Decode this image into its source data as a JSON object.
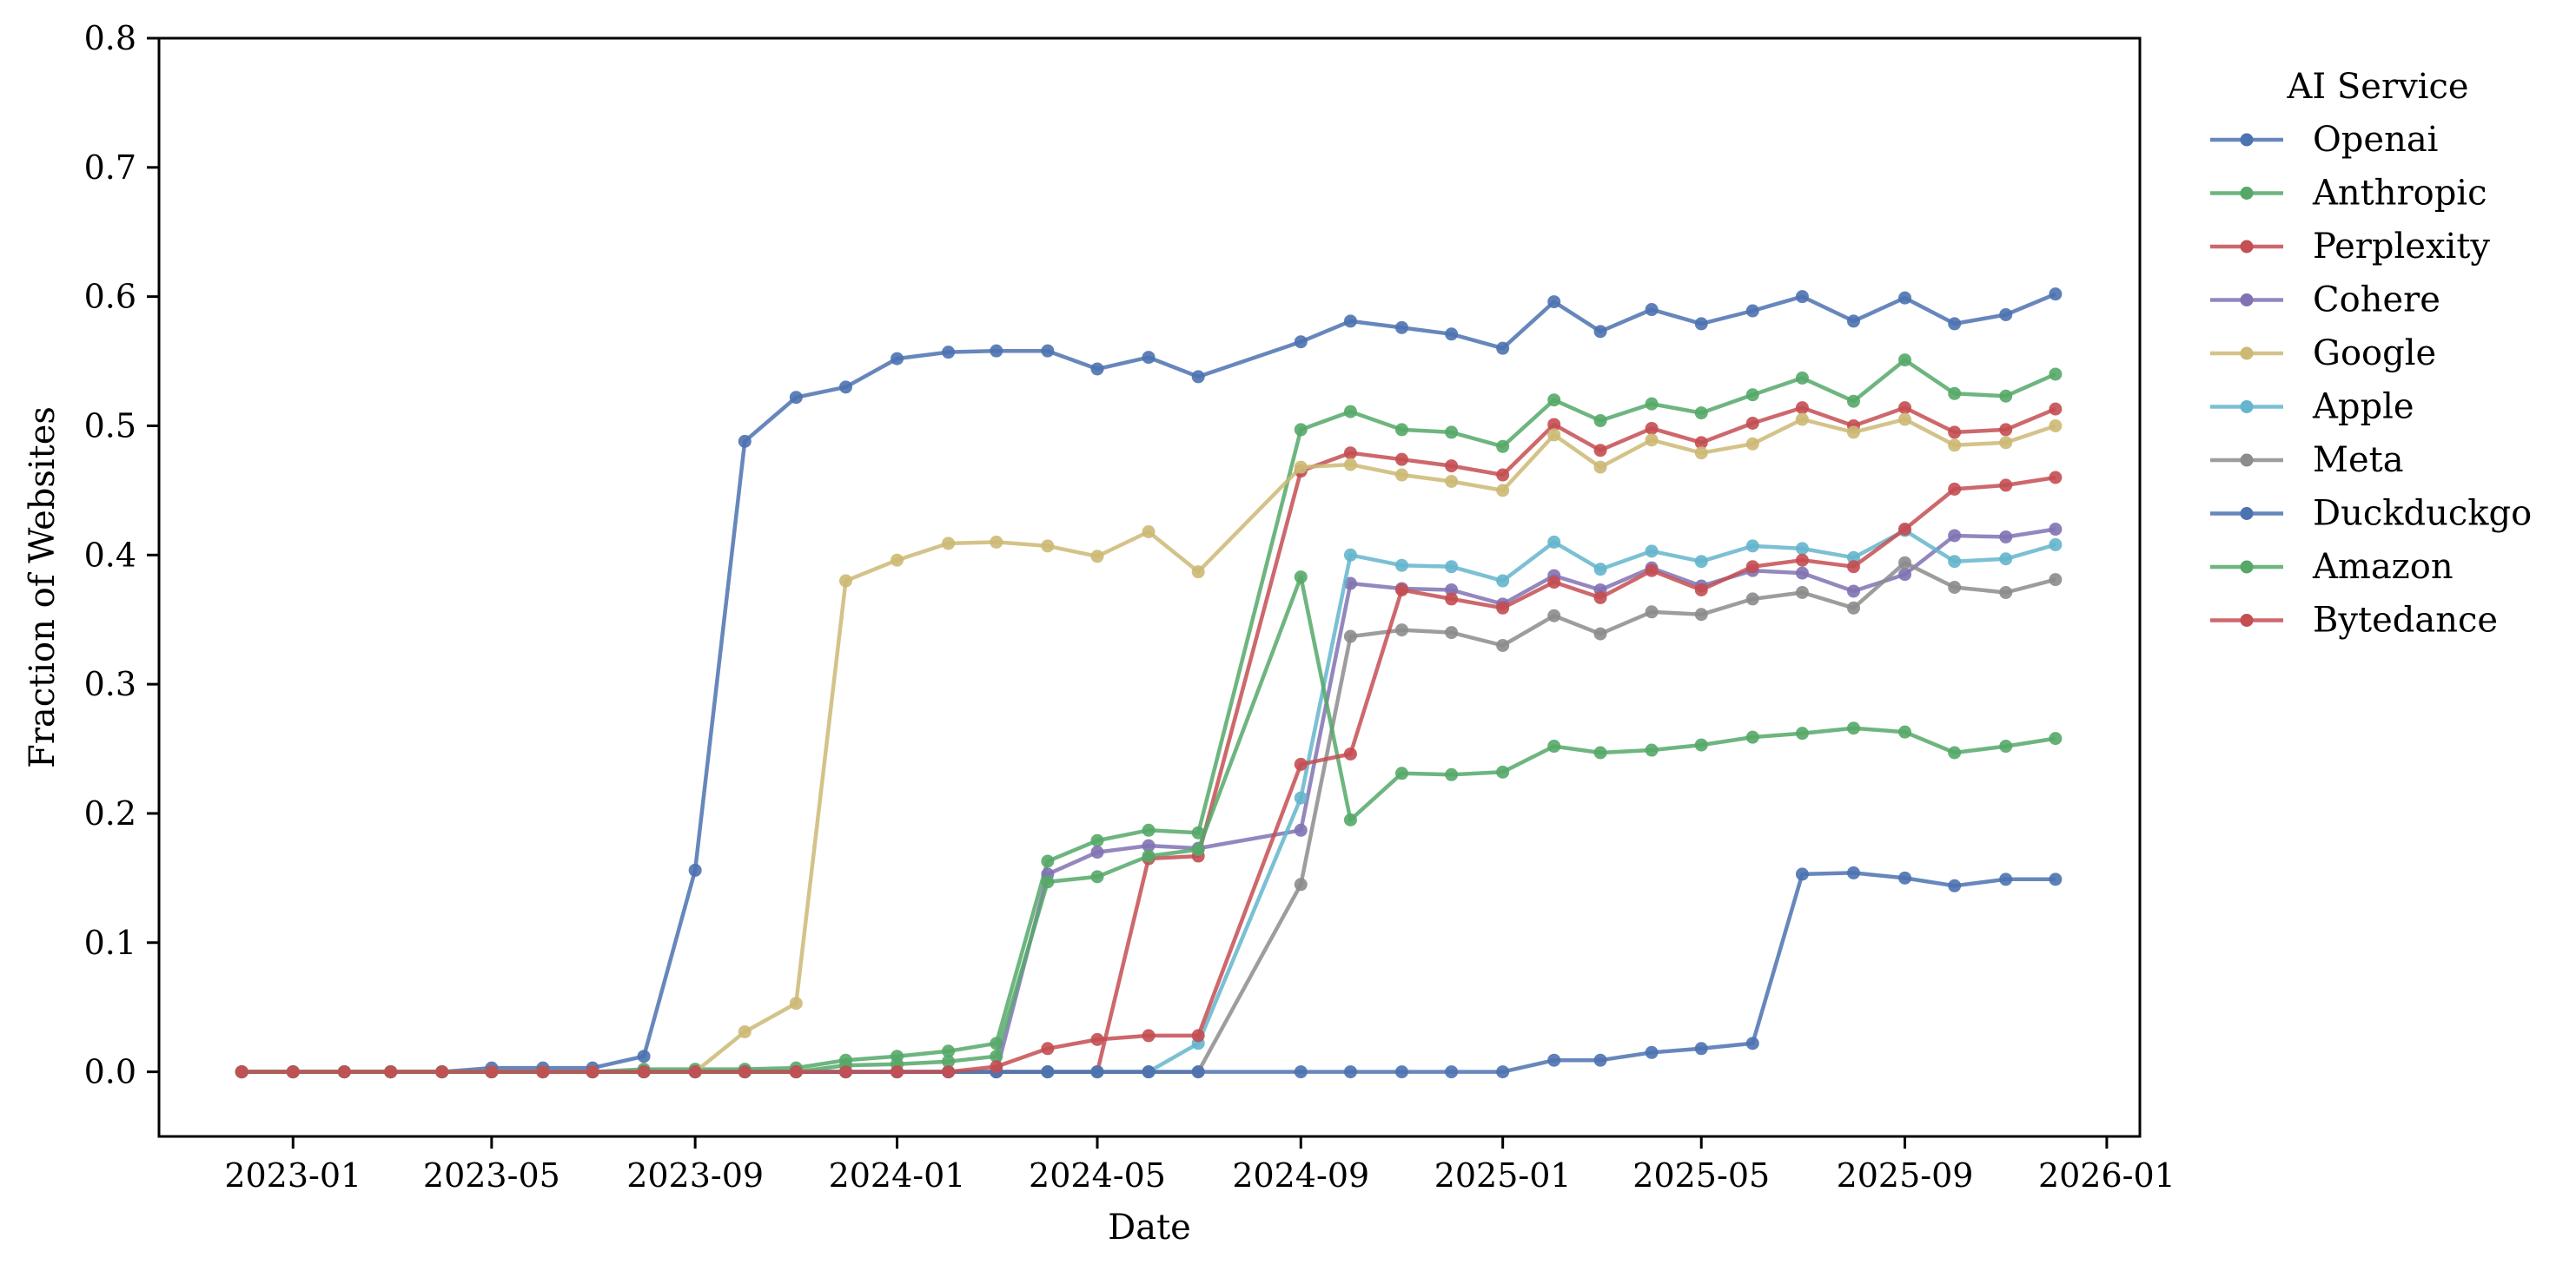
{
  "chart_data": {
    "type": "line",
    "xlabel": "Date",
    "ylabel": "Fraction of Websites",
    "ylim": [
      -0.05,
      0.8
    ],
    "xlim": [
      "2022-10-12",
      "2026-01-21"
    ],
    "grid": false,
    "legend": {
      "title": "AI Service",
      "placement": "outside-right-top"
    },
    "x_ticks": [
      "2023-01",
      "2023-05",
      "2023-09",
      "2024-01",
      "2024-05",
      "2024-09",
      "2025-01",
      "2025-05",
      "2025-09",
      "2026-01"
    ],
    "y_ticks": [
      "0.0",
      "0.1",
      "0.2",
      "0.3",
      "0.4",
      "0.5",
      "0.6",
      "0.7",
      "0.8"
    ],
    "x": [
      "2022-12-01",
      "2023-01-01",
      "2023-02-01",
      "2023-03-01",
      "2023-04-01",
      "2023-05-01",
      "2023-06-01",
      "2023-07-01",
      "2023-08-01",
      "2023-09-01",
      "2023-10-01",
      "2023-11-01",
      "2023-12-01",
      "2024-01-01",
      "2024-02-01",
      "2024-03-01",
      "2024-04-01",
      "2024-05-01",
      "2024-06-01",
      "2024-07-01",
      "2024-09-01",
      "2024-10-01",
      "2024-11-01",
      "2024-12-01",
      "2025-01-01",
      "2025-02-01",
      "2025-03-01",
      "2025-04-01",
      "2025-05-01",
      "2025-06-01",
      "2025-07-01",
      "2025-08-01",
      "2025-09-01",
      "2025-10-01",
      "2025-11-01",
      "2025-12-01"
    ],
    "series": [
      {
        "name": "Openai",
        "color": "#4c72b0",
        "values": [
          0,
          0,
          0,
          0,
          0,
          0.003,
          0.003,
          0.003,
          0.012,
          0.156,
          0.488,
          0.522,
          0.53,
          0.552,
          0.557,
          0.558,
          0.558,
          0.544,
          0.553,
          0.538,
          0.565,
          0.581,
          0.576,
          0.571,
          0.56,
          0.596,
          0.573,
          0.59,
          0.579,
          0.589,
          0.6,
          0.581,
          0.599,
          0.579,
          0.586,
          0.602
        ]
      },
      {
        "name": "Anthropic",
        "color": "#55a868",
        "values": [
          0,
          0,
          0,
          0,
          0,
          0,
          0,
          0,
          0.002,
          0.002,
          0.002,
          0.003,
          0.009,
          0.012,
          0.016,
          0.022,
          0.163,
          0.179,
          0.187,
          0.185,
          0.497,
          0.511,
          0.497,
          0.495,
          0.484,
          0.52,
          0.504,
          0.517,
          0.51,
          0.524,
          0.537,
          0.519,
          0.551,
          0.525,
          0.523,
          0.54
        ]
      },
      {
        "name": "Perplexity",
        "color": "#c44e52",
        "values": [
          0,
          0,
          0,
          0,
          0,
          0,
          0,
          0,
          0,
          0,
          0,
          0,
          0,
          0,
          0,
          0,
          0,
          0,
          0.165,
          0.167,
          0.465,
          0.479,
          0.474,
          0.469,
          0.462,
          0.501,
          0.481,
          0.498,
          0.487,
          0.502,
          0.514,
          0.5,
          0.514,
          0.495,
          0.497,
          0.513
        ]
      },
      {
        "name": "Cohere",
        "color": "#8172b3",
        "values": [
          0,
          0,
          0,
          0,
          0,
          0,
          0,
          0,
          0,
          0,
          0,
          0,
          0,
          0,
          0,
          0,
          0.153,
          0.17,
          0.175,
          0.173,
          0.187,
          0.378,
          0.374,
          0.373,
          0.362,
          0.384,
          0.373,
          0.39,
          0.376,
          0.388,
          0.386,
          0.372,
          0.385,
          0.415,
          0.414,
          0.42
        ]
      },
      {
        "name": "Google",
        "color": "#ccb974",
        "values": [
          0,
          0,
          0,
          0,
          0,
          0,
          0,
          0,
          0,
          0,
          0.031,
          0.053,
          0.38,
          0.396,
          0.409,
          0.41,
          0.407,
          0.399,
          0.418,
          0.387,
          0.468,
          0.47,
          0.462,
          0.457,
          0.45,
          0.493,
          0.468,
          0.489,
          0.479,
          0.486,
          0.505,
          0.495,
          0.505,
          0.485,
          0.487,
          0.5
        ]
      },
      {
        "name": "Apple",
        "color": "#64b5cd",
        "values": [
          0,
          0,
          0,
          0,
          0,
          0,
          0,
          0,
          0,
          0,
          0,
          0,
          0,
          0,
          0,
          0,
          0,
          0,
          0,
          0.022,
          0.212,
          0.4,
          0.392,
          0.391,
          0.38,
          0.41,
          0.389,
          0.403,
          0.395,
          0.407,
          0.405,
          0.398,
          0.419,
          0.395,
          0.397,
          0.408
        ]
      },
      {
        "name": "Meta",
        "color": "#8c8c8c",
        "values": [
          0,
          0,
          0,
          0,
          0,
          0,
          0,
          0,
          0,
          0,
          0,
          0,
          0,
          0,
          0,
          0,
          0,
          0,
          0,
          0,
          0.145,
          0.337,
          0.342,
          0.34,
          0.33,
          0.353,
          0.339,
          0.356,
          0.354,
          0.366,
          0.371,
          0.359,
          0.394,
          0.375,
          0.371,
          0.381
        ]
      },
      {
        "name": "Duckduckgo",
        "color": "#4c72b0",
        "values": [
          0,
          0,
          0,
          0,
          0,
          0,
          0,
          0,
          0,
          0,
          0,
          0,
          0,
          0,
          0,
          0,
          0,
          0,
          0,
          0,
          0,
          0,
          0,
          0,
          0,
          0.009,
          0.009,
          0.015,
          0.018,
          0.022,
          0.153,
          0.154,
          0.15,
          0.144,
          0.149,
          0.149
        ]
      },
      {
        "name": "Amazon",
        "color": "#55a868",
        "values": [
          0,
          0,
          0,
          0,
          0,
          0,
          0,
          0,
          0,
          0,
          0,
          0,
          0.005,
          0.006,
          0.008,
          0.012,
          0.147,
          0.151,
          0.167,
          0.172,
          0.383,
          0.195,
          0.231,
          0.23,
          0.232,
          0.252,
          0.247,
          0.249,
          0.253,
          0.259,
          0.262,
          0.266,
          0.263,
          0.247,
          0.252,
          0.258
        ]
      },
      {
        "name": "Bytedance",
        "color": "#c44e52",
        "values": [
          0,
          0,
          0,
          0,
          0,
          0,
          0,
          0,
          0,
          0,
          0,
          0,
          0,
          0,
          0,
          0.004,
          0.018,
          0.025,
          0.028,
          0.028,
          0.238,
          0.246,
          0.373,
          0.366,
          0.359,
          0.379,
          0.367,
          0.388,
          0.373,
          0.391,
          0.396,
          0.391,
          0.42,
          0.451,
          0.454,
          0.46
        ]
      }
    ]
  }
}
